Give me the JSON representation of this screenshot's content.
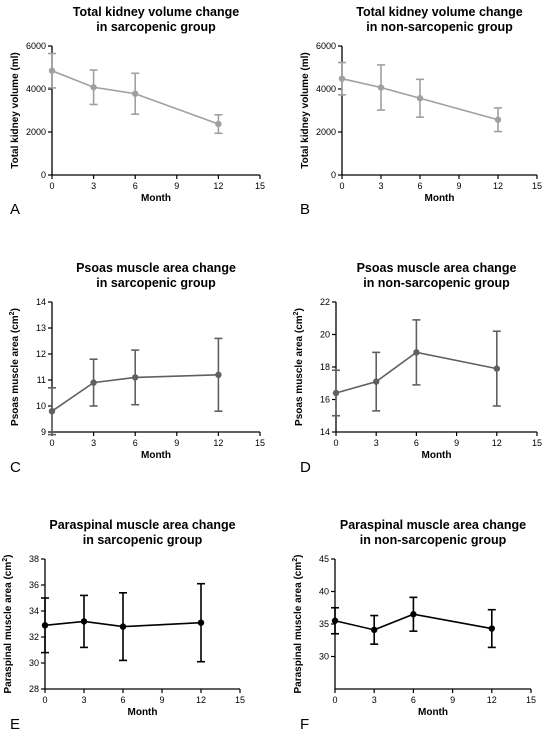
{
  "chart_data": [
    {
      "type": "line",
      "panel": "A",
      "title": [
        "Total kidney volume change",
        "in sarcopenic group"
      ],
      "xlabel": "Month",
      "ylabel": "Total kidney volume (ml)",
      "ylabel_sup": "",
      "ylabel_end": "",
      "xlim": [
        0,
        15
      ],
      "xticks": [
        0,
        3,
        6,
        9,
        12,
        15
      ],
      "ylim": [
        0,
        6000
      ],
      "yticks": [
        0,
        2000,
        4000,
        6000
      ],
      "color": "#a0a0a0",
      "series": [
        {
          "x": [
            0,
            3,
            6,
            12
          ],
          "y": [
            4850,
            4080,
            3780,
            2370
          ],
          "err": [
            800,
            800,
            950,
            430
          ]
        }
      ]
    },
    {
      "type": "line",
      "panel": "B",
      "title": [
        "Total kidney volume change",
        "in non-sarcopenic group"
      ],
      "xlabel": "Month",
      "ylabel": "Total kidney volume (ml)",
      "ylabel_sup": "",
      "ylabel_end": "",
      "xlim": [
        0,
        15
      ],
      "xticks": [
        0,
        3,
        6,
        9,
        12,
        15
      ],
      "ylim": [
        0,
        6000
      ],
      "yticks": [
        0,
        2000,
        4000,
        6000
      ],
      "color": "#a0a0a0",
      "series": [
        {
          "x": [
            0,
            3,
            6,
            12
          ],
          "y": [
            4480,
            4070,
            3570,
            2570
          ],
          "err": [
            750,
            1050,
            880,
            550
          ]
        }
      ]
    },
    {
      "type": "line",
      "panel": "C",
      "title": [
        "Psoas muscle area change",
        "in sarcopenic group"
      ],
      "xlabel": "Month",
      "ylabel": "Psoas muscle area (cm",
      "ylabel_sup": "2",
      "ylabel_end": ")",
      "xlim": [
        0,
        15
      ],
      "xticks": [
        0,
        3,
        6,
        9,
        12,
        15
      ],
      "ylim": [
        9,
        14
      ],
      "yticks": [
        9,
        10,
        11,
        12,
        13,
        14
      ],
      "color": "#606060",
      "series": [
        {
          "x": [
            0,
            3,
            6,
            12
          ],
          "y": [
            9.8,
            10.9,
            11.1,
            11.2
          ],
          "err": [
            0.9,
            0.9,
            1.05,
            1.4
          ]
        }
      ]
    },
    {
      "type": "line",
      "panel": "D",
      "title": [
        "Psoas muscle area change",
        "in non-sarcopenic group"
      ],
      "xlabel": "Month",
      "ylabel": "Psoas muscle area (cm",
      "ylabel_sup": "2",
      "ylabel_end": ")",
      "xlim": [
        0,
        15
      ],
      "xticks": [
        0,
        3,
        6,
        9,
        12,
        15
      ],
      "ylim": [
        14,
        22
      ],
      "yticks": [
        14,
        16,
        18,
        20,
        22
      ],
      "color": "#606060",
      "series": [
        {
          "x": [
            0,
            3,
            6,
            12
          ],
          "y": [
            16.4,
            17.1,
            18.9,
            17.9
          ],
          "err": [
            1.4,
            1.8,
            2.0,
            2.3
          ]
        }
      ]
    },
    {
      "type": "line",
      "panel": "E",
      "title": [
        "Paraspinal muscle area change",
        "in sarcopenic group"
      ],
      "xlabel": "Month",
      "ylabel": "Paraspinal muscle area (cm",
      "ylabel_sup": "2",
      "ylabel_end": ")",
      "xlim": [
        0,
        15
      ],
      "xticks": [
        0,
        3,
        6,
        9,
        12,
        15
      ],
      "ylim": [
        28,
        38
      ],
      "yticks": [
        28,
        30,
        32,
        34,
        36,
        38
      ],
      "color": "#000000",
      "series": [
        {
          "x": [
            0,
            3,
            6,
            12
          ],
          "y": [
            32.9,
            33.2,
            32.8,
            33.1
          ],
          "err": [
            2.1,
            2.0,
            2.6,
            3.0
          ]
        }
      ]
    },
    {
      "type": "line",
      "panel": "F",
      "title": [
        "Paraspinal muscle area change",
        "in non-sarcopenic group"
      ],
      "xlabel": "Month",
      "ylabel": "Paraspinal muscle area (cm",
      "ylabel_sup": "2",
      "ylabel_end": ")",
      "xlim": [
        0,
        15
      ],
      "xticks": [
        0,
        3,
        6,
        9,
        12,
        15
      ],
      "ylim": [
        25,
        45
      ],
      "yticks": [
        30,
        35,
        40,
        45
      ],
      "color": "#000000",
      "series": [
        {
          "x": [
            0,
            3,
            6,
            12
          ],
          "y": [
            35.5,
            34.1,
            36.5,
            34.3
          ],
          "err": [
            2.0,
            2.2,
            2.6,
            2.9
          ]
        }
      ]
    }
  ]
}
